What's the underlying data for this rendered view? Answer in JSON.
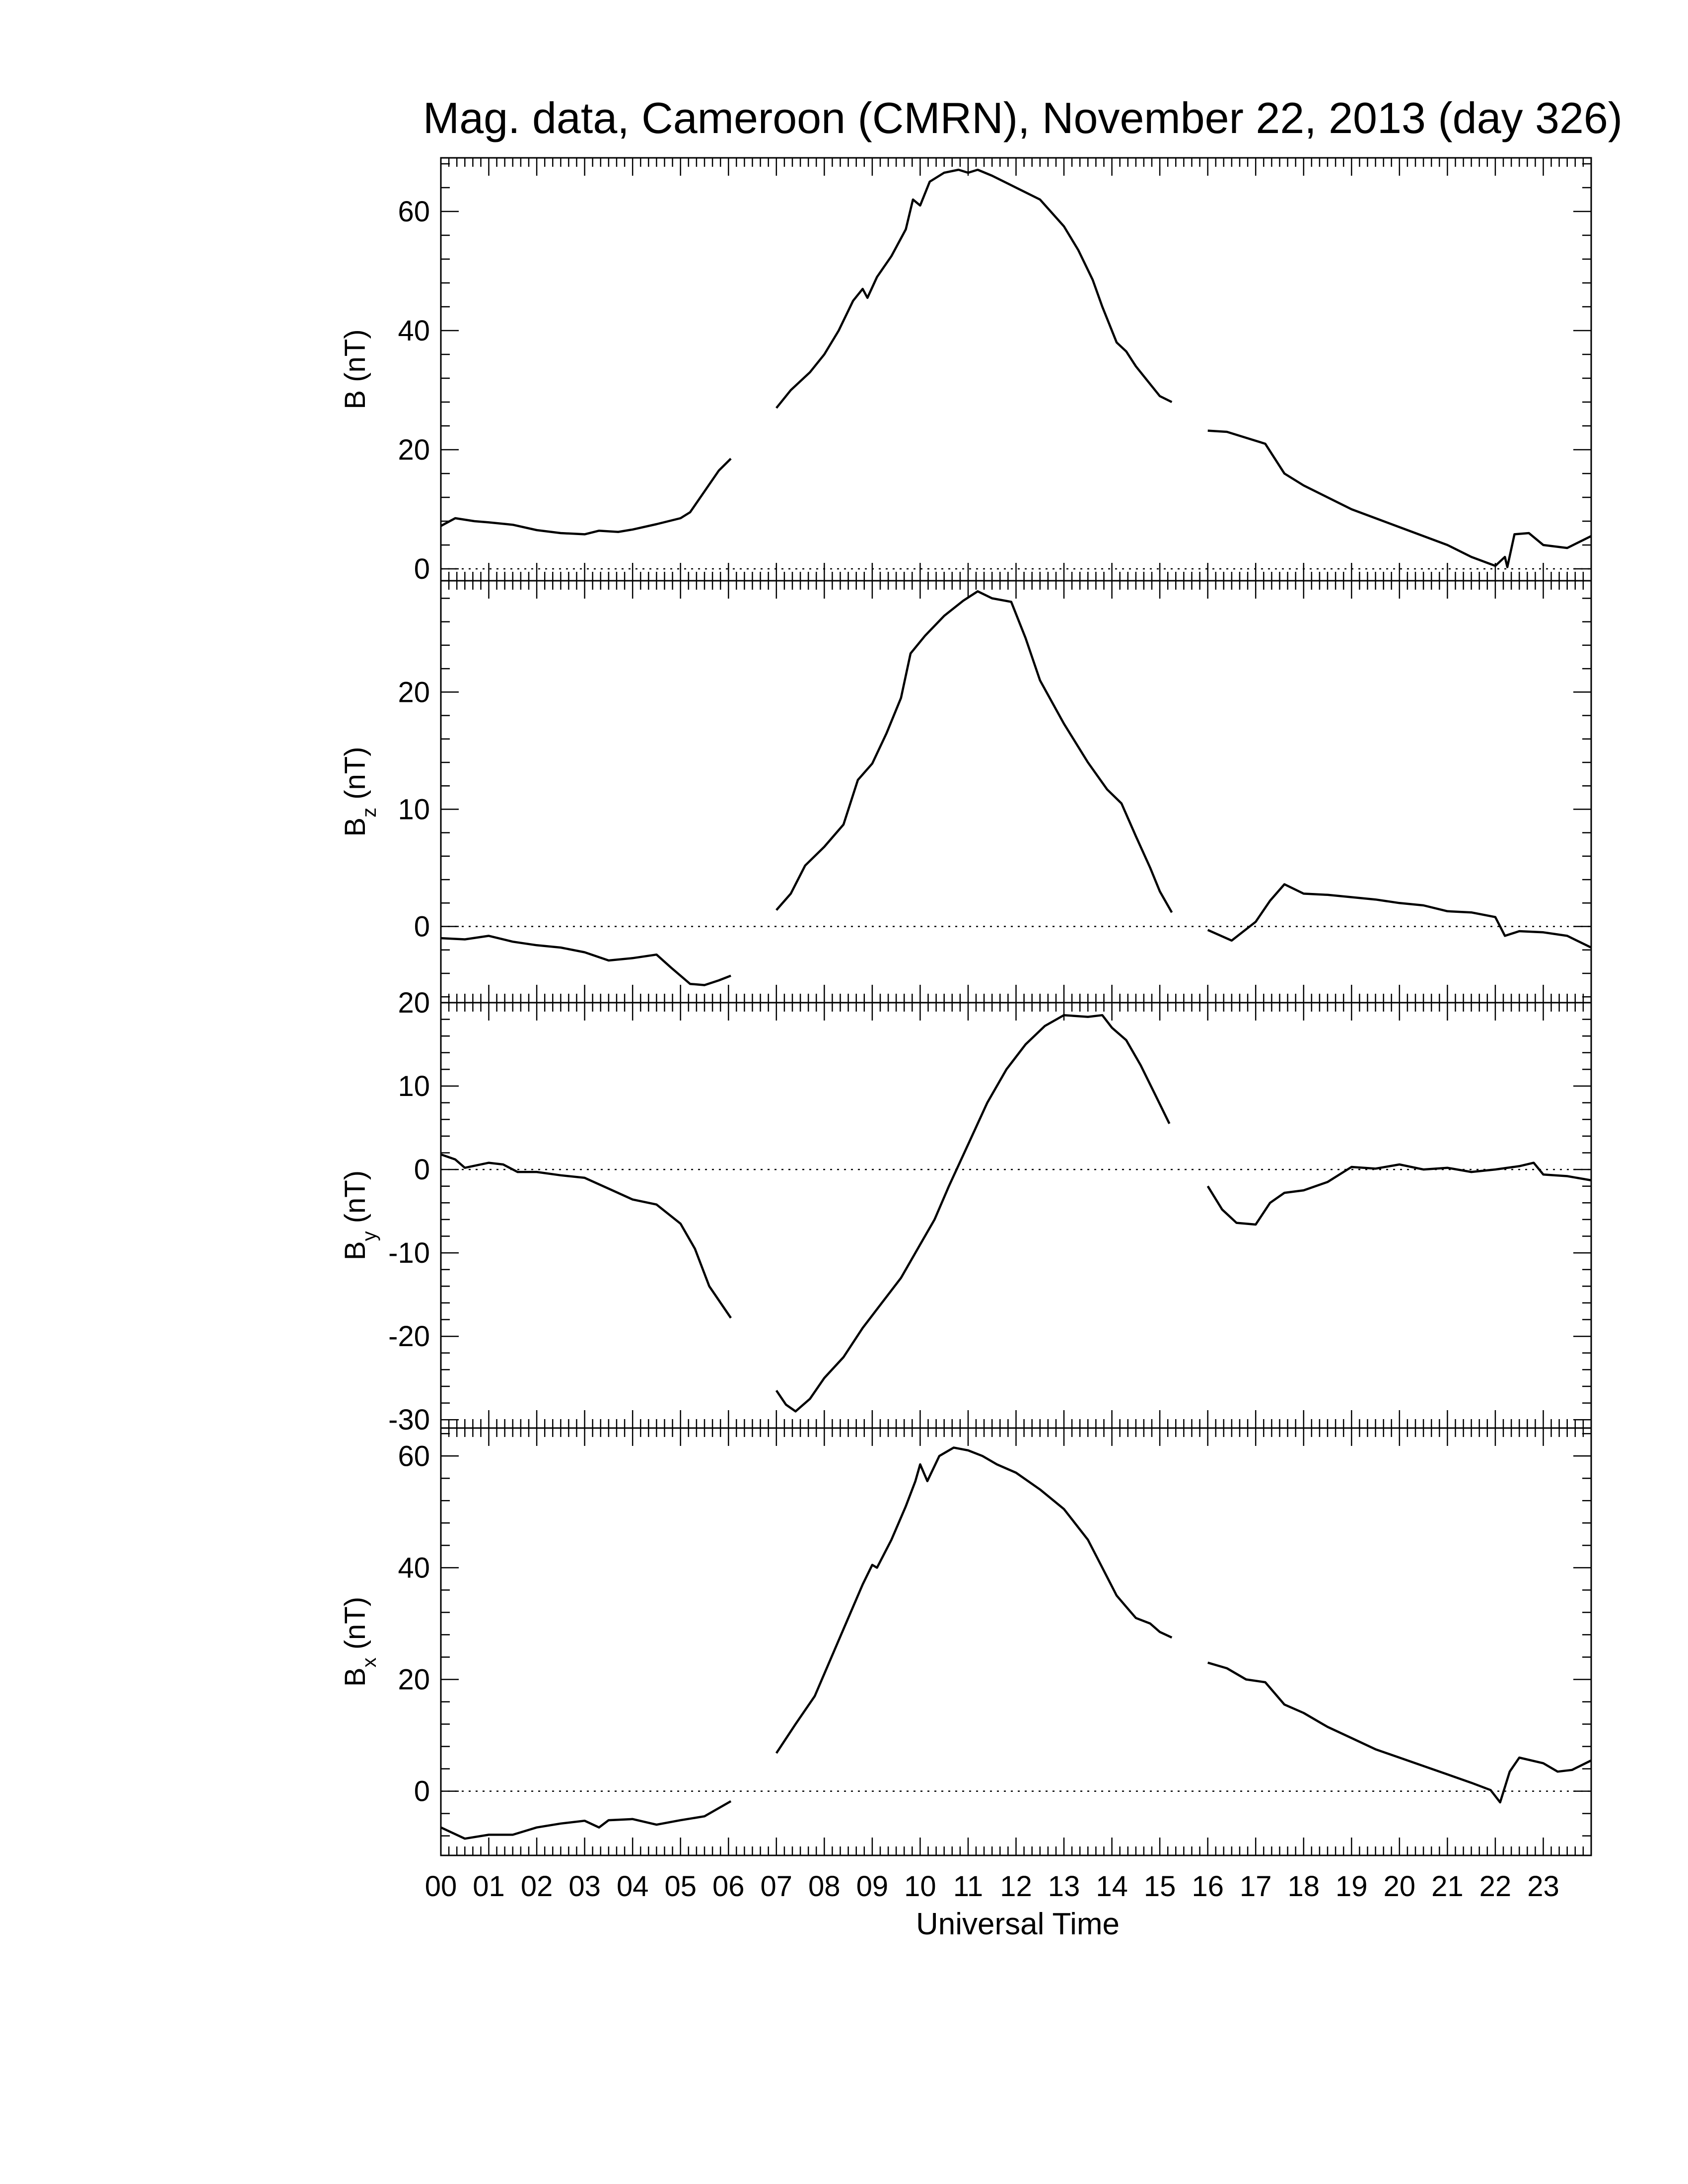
{
  "title": "Mag. data, Cameroon (CMRN), November 22, 2013 (day 326)",
  "xlabel": "Universal Time",
  "x_tick_labels": [
    "00",
    "01",
    "02",
    "03",
    "04",
    "05",
    "06",
    "07",
    "08",
    "09",
    "10",
    "11",
    "12",
    "13",
    "14",
    "15",
    "16",
    "17",
    "18",
    "19",
    "20",
    "21",
    "22",
    "23"
  ],
  "colors": {
    "line": "#000000",
    "background": "#ffffff"
  },
  "chart_data": [
    {
      "type": "line",
      "ylabel_main": "B",
      "ylabel_sub": "",
      "ylabel_unit": "(nT)",
      "xlim": [
        0,
        24
      ],
      "ylim": [
        -2,
        69
      ],
      "yticks": [
        0,
        20,
        40,
        60
      ],
      "zero_line": true,
      "segments": [
        [
          [
            0,
            7.2
          ],
          [
            0.3,
            8.5
          ],
          [
            0.7,
            8
          ],
          [
            1,
            7.8
          ],
          [
            1.5,
            7.4
          ],
          [
            2,
            6.5
          ],
          [
            2.5,
            6
          ],
          [
            3,
            5.8
          ],
          [
            3.3,
            6.4
          ],
          [
            3.7,
            6.2
          ],
          [
            4,
            6.6
          ],
          [
            4.5,
            7.5
          ],
          [
            5,
            8.5
          ],
          [
            5.2,
            9.5
          ],
          [
            5.5,
            13
          ],
          [
            5.8,
            16.5
          ],
          [
            6.05,
            18.5
          ]
        ],
        [
          [
            7,
            27
          ],
          [
            7.3,
            30
          ],
          [
            7.7,
            33
          ],
          [
            8.0,
            36
          ],
          [
            8.3,
            40
          ],
          [
            8.6,
            45
          ],
          [
            8.8,
            47
          ],
          [
            8.9,
            45.5
          ],
          [
            9.1,
            49
          ],
          [
            9.4,
            52.5
          ],
          [
            9.7,
            57
          ],
          [
            9.85,
            62
          ],
          [
            10.0,
            61
          ],
          [
            10.2,
            65
          ],
          [
            10.5,
            66.5
          ],
          [
            10.8,
            67
          ],
          [
            11.0,
            66.5
          ],
          [
            11.2,
            67
          ],
          [
            11.5,
            66
          ],
          [
            12.0,
            64
          ],
          [
            12.5,
            62
          ],
          [
            13.0,
            57.5
          ],
          [
            13.3,
            53.5
          ],
          [
            13.6,
            48.5
          ],
          [
            13.8,
            44
          ],
          [
            14.1,
            38
          ],
          [
            14.3,
            36.5
          ],
          [
            14.5,
            34
          ],
          [
            14.8,
            31
          ],
          [
            15.0,
            29
          ],
          [
            15.25,
            28
          ]
        ],
        [
          [
            16,
            23.2
          ],
          [
            16.4,
            23
          ],
          [
            16.8,
            22
          ],
          [
            17.2,
            21
          ],
          [
            17.6,
            16
          ],
          [
            18,
            14
          ],
          [
            18.5,
            12
          ],
          [
            19,
            10
          ],
          [
            19.5,
            8.5
          ],
          [
            20,
            7
          ],
          [
            20.5,
            5.5
          ],
          [
            21,
            4
          ],
          [
            21.5,
            2
          ],
          [
            22,
            0.5
          ],
          [
            22.2,
            2
          ],
          [
            22.25,
            0.3
          ],
          [
            22.4,
            5.8
          ],
          [
            22.7,
            6
          ],
          [
            23,
            4
          ],
          [
            23.5,
            3.5
          ],
          [
            24,
            5.5
          ]
        ]
      ]
    },
    {
      "type": "line",
      "ylabel_main": "B",
      "ylabel_sub": "z",
      "ylabel_unit": "(nT)",
      "xlim": [
        0,
        24
      ],
      "ylim": [
        -6.5,
        29.5
      ],
      "yticks": [
        0,
        10,
        20
      ],
      "zero_line": true,
      "segments": [
        [
          [
            0,
            -1
          ],
          [
            0.5,
            -1.1
          ],
          [
            1,
            -0.8
          ],
          [
            1.5,
            -1.3
          ],
          [
            2,
            -1.6
          ],
          [
            2.5,
            -1.8
          ],
          [
            3,
            -2.2
          ],
          [
            3.5,
            -2.9
          ],
          [
            4,
            -2.7
          ],
          [
            4.5,
            -2.4
          ],
          [
            4.8,
            -3.5
          ],
          [
            5.2,
            -4.9
          ],
          [
            5.5,
            -5.0
          ],
          [
            5.8,
            -4.6
          ],
          [
            6.05,
            -4.2
          ]
        ],
        [
          [
            7,
            1.4
          ],
          [
            7.3,
            2.8
          ],
          [
            7.6,
            5.2
          ],
          [
            8,
            6.8
          ],
          [
            8.4,
            8.7
          ],
          [
            8.7,
            12.5
          ],
          [
            9.0,
            13.9
          ],
          [
            9.3,
            16.5
          ],
          [
            9.6,
            19.5
          ],
          [
            9.8,
            23.3
          ],
          [
            10.1,
            24.8
          ],
          [
            10.5,
            26.5
          ],
          [
            10.9,
            27.8
          ],
          [
            11.2,
            28.6
          ],
          [
            11.5,
            28.0
          ],
          [
            11.9,
            27.7
          ],
          [
            12.2,
            24.6
          ],
          [
            12.5,
            21.0
          ],
          [
            13.0,
            17.3
          ],
          [
            13.5,
            14
          ],
          [
            13.9,
            11.7
          ],
          [
            14.2,
            10.5
          ],
          [
            14.5,
            7.7
          ],
          [
            14.8,
            5.0
          ],
          [
            15.0,
            3.0
          ],
          [
            15.25,
            1.2
          ]
        ],
        [
          [
            16,
            -0.3
          ],
          [
            16.5,
            -1.2
          ],
          [
            17,
            0.4
          ],
          [
            17.3,
            2.2
          ],
          [
            17.6,
            3.6
          ],
          [
            18,
            2.8
          ],
          [
            18.5,
            2.7
          ],
          [
            19,
            2.5
          ],
          [
            19.5,
            2.3
          ],
          [
            20,
            2.0
          ],
          [
            20.5,
            1.8
          ],
          [
            21,
            1.3
          ],
          [
            21.5,
            1.2
          ],
          [
            22,
            0.8
          ],
          [
            22.2,
            -0.8
          ],
          [
            22.5,
            -0.4
          ],
          [
            23,
            -0.5
          ],
          [
            23.5,
            -0.8
          ],
          [
            24,
            -1.8
          ]
        ]
      ]
    },
    {
      "type": "line",
      "ylabel_main": "B",
      "ylabel_sub": "y",
      "ylabel_unit": "(nT)",
      "xlim": [
        0,
        24
      ],
      "ylim": [
        -31,
        20
      ],
      "yticks": [
        -30,
        -20,
        -10,
        0,
        10,
        20
      ],
      "zero_line": true,
      "segments": [
        [
          [
            0,
            1.8
          ],
          [
            0.3,
            1.2
          ],
          [
            0.5,
            0.2
          ],
          [
            1,
            0.8
          ],
          [
            1.3,
            0.6
          ],
          [
            1.6,
            -0.3
          ],
          [
            2,
            -0.3
          ],
          [
            2.5,
            -0.7
          ],
          [
            3,
            -1
          ],
          [
            3.5,
            -2.3
          ],
          [
            4,
            -3.6
          ],
          [
            4.5,
            -4.2
          ],
          [
            5,
            -6.5
          ],
          [
            5.3,
            -9.5
          ],
          [
            5.6,
            -14
          ],
          [
            6.05,
            -17.8
          ]
        ],
        [
          [
            7,
            -26.5
          ],
          [
            7.2,
            -28.2
          ],
          [
            7.4,
            -29
          ],
          [
            7.7,
            -27.5
          ],
          [
            8,
            -25
          ],
          [
            8.4,
            -22.5
          ],
          [
            8.8,
            -19
          ],
          [
            9.2,
            -16
          ],
          [
            9.6,
            -13
          ],
          [
            10,
            -9
          ],
          [
            10.3,
            -6
          ],
          [
            10.6,
            -2
          ],
          [
            11,
            3
          ],
          [
            11.4,
            8
          ],
          [
            11.8,
            12
          ],
          [
            12.2,
            15
          ],
          [
            12.6,
            17.2
          ],
          [
            13.0,
            18.5
          ],
          [
            13.5,
            18.3
          ],
          [
            13.8,
            18.5
          ],
          [
            14.0,
            17
          ],
          [
            14.3,
            15.5
          ],
          [
            14.6,
            12.5
          ],
          [
            14.9,
            9
          ],
          [
            15.2,
            5.5
          ]
        ],
        [
          [
            16,
            -2
          ],
          [
            16.3,
            -4.8
          ],
          [
            16.6,
            -6.4
          ],
          [
            17.0,
            -6.6
          ],
          [
            17.3,
            -4
          ],
          [
            17.6,
            -2.8
          ],
          [
            18.0,
            -2.5
          ],
          [
            18.5,
            -1.5
          ],
          [
            19,
            0.3
          ],
          [
            19.5,
            0.1
          ],
          [
            20,
            0.6
          ],
          [
            20.5,
            0
          ],
          [
            21,
            0.2
          ],
          [
            21.5,
            -0.3
          ],
          [
            22,
            0
          ],
          [
            22.5,
            0.4
          ],
          [
            22.8,
            0.8
          ],
          [
            23,
            -0.6
          ],
          [
            23.5,
            -0.8
          ],
          [
            24,
            -1.3
          ]
        ]
      ]
    },
    {
      "type": "line",
      "ylabel_main": "B",
      "ylabel_sub": "x",
      "ylabel_unit": "(nT)",
      "xlim": [
        0,
        24
      ],
      "ylim": [
        -11.5,
        65
      ],
      "yticks": [
        0,
        20,
        40,
        60
      ],
      "zero_line": true,
      "segments": [
        [
          [
            0,
            -6.5
          ],
          [
            0.5,
            -8.5
          ],
          [
            1,
            -7.8
          ],
          [
            1.5,
            -7.8
          ],
          [
            2,
            -6.5
          ],
          [
            2.5,
            -5.8
          ],
          [
            3,
            -5.3
          ],
          [
            3.3,
            -6.5
          ],
          [
            3.5,
            -5.2
          ],
          [
            4,
            -5
          ],
          [
            4.5,
            -6
          ],
          [
            5,
            -5.2
          ],
          [
            5.5,
            -4.5
          ],
          [
            6.05,
            -1.8
          ]
        ],
        [
          [
            7,
            6.8
          ],
          [
            7.4,
            12
          ],
          [
            7.8,
            17
          ],
          [
            8.2,
            25
          ],
          [
            8.5,
            31
          ],
          [
            8.8,
            37
          ],
          [
            9.0,
            40.5
          ],
          [
            9.1,
            40
          ],
          [
            9.4,
            45
          ],
          [
            9.7,
            51
          ],
          [
            9.9,
            55.5
          ],
          [
            10.0,
            58.5
          ],
          [
            10.15,
            55.5
          ],
          [
            10.4,
            60
          ],
          [
            10.7,
            61.5
          ],
          [
            11.0,
            61
          ],
          [
            11.3,
            60
          ],
          [
            11.6,
            58.5
          ],
          [
            12.0,
            57
          ],
          [
            12.5,
            54
          ],
          [
            13.0,
            50.5
          ],
          [
            13.5,
            45
          ],
          [
            13.8,
            40
          ],
          [
            14.1,
            35
          ],
          [
            14.3,
            33
          ],
          [
            14.5,
            31
          ],
          [
            14.8,
            30
          ],
          [
            15.0,
            28.5
          ],
          [
            15.25,
            27.5
          ]
        ],
        [
          [
            16,
            23
          ],
          [
            16.4,
            22
          ],
          [
            16.8,
            20
          ],
          [
            17.2,
            19.5
          ],
          [
            17.6,
            15.5
          ],
          [
            18,
            14
          ],
          [
            18.5,
            11.5
          ],
          [
            19,
            9.5
          ],
          [
            19.5,
            7.5
          ],
          [
            20,
            6
          ],
          [
            20.5,
            4.5
          ],
          [
            21,
            3
          ],
          [
            21.5,
            1.5
          ],
          [
            21.9,
            0.2
          ],
          [
            22.1,
            -2
          ],
          [
            22.3,
            3.5
          ],
          [
            22.5,
            6
          ],
          [
            23,
            5
          ],
          [
            23.3,
            3.5
          ],
          [
            23.6,
            3.8
          ],
          [
            24,
            5.5
          ]
        ]
      ]
    }
  ]
}
